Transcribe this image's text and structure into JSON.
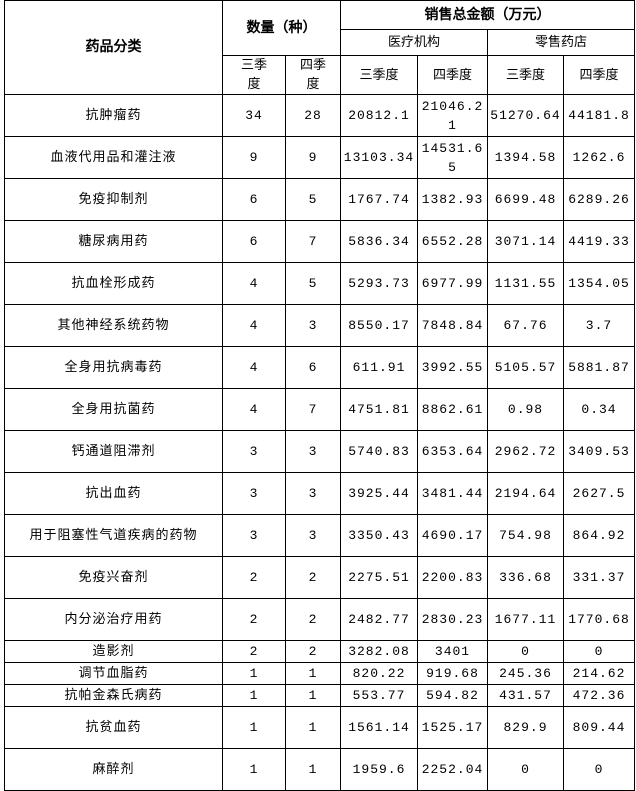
{
  "header": {
    "category": "药品分类",
    "count": "数量（种）",
    "sales_total": "销售总金额（万元）",
    "medical": "医疗机构",
    "retail": "零售药店",
    "q3": "三季度",
    "q4": "四季度"
  },
  "rows": [
    {
      "name": "抗肿瘤药",
      "n3": "34",
      "n4": "28",
      "m3": "20812.1",
      "m4": "21046.21",
      "r3": "51270.64",
      "r4": "44181.8",
      "tall": true
    },
    {
      "name": "血液代用品和灌注液",
      "n3": "9",
      "n4": "9",
      "m3": "13103.34",
      "m4": "14531.65",
      "r3": "1394.58",
      "r4": "1262.6",
      "tall": true
    },
    {
      "name": "免疫抑制剂",
      "n3": "6",
      "n4": "5",
      "m3": "1767.74",
      "m4": "1382.93",
      "r3": "6699.48",
      "r4": "6289.26",
      "tall": true
    },
    {
      "name": "糖尿病用药",
      "n3": "6",
      "n4": "7",
      "m3": "5836.34",
      "m4": "6552.28",
      "r3": "3071.14",
      "r4": "4419.33",
      "tall": true
    },
    {
      "name": "抗血栓形成药",
      "n3": "4",
      "n4": "5",
      "m3": "5293.73",
      "m4": "6977.99",
      "r3": "1131.55",
      "r4": "1354.05",
      "tall": true
    },
    {
      "name": "其他神经系统药物",
      "n3": "4",
      "n4": "3",
      "m3": "8550.17",
      "m4": "7848.84",
      "r3": "67.76",
      "r4": "3.7",
      "tall": true
    },
    {
      "name": "全身用抗病毒药",
      "n3": "4",
      "n4": "6",
      "m3": "611.91",
      "m4": "3992.55",
      "r3": "5105.57",
      "r4": "5881.87",
      "tall": true
    },
    {
      "name": "全身用抗菌药",
      "n3": "4",
      "n4": "7",
      "m3": "4751.81",
      "m4": "8862.61",
      "r3": "0.98",
      "r4": "0.34",
      "tall": true
    },
    {
      "name": "钙通道阻滞剂",
      "n3": "3",
      "n4": "3",
      "m3": "5740.83",
      "m4": "6353.64",
      "r3": "2962.72",
      "r4": "3409.53",
      "tall": true
    },
    {
      "name": "抗出血药",
      "n3": "3",
      "n4": "3",
      "m3": "3925.44",
      "m4": "3481.44",
      "r3": "2194.64",
      "r4": "2627.5",
      "tall": true
    },
    {
      "name": "用于阻塞性气道疾病的药物",
      "n3": "3",
      "n4": "3",
      "m3": "3350.43",
      "m4": "4690.17",
      "r3": "754.98",
      "r4": "864.92",
      "tall": true
    },
    {
      "name": "免疫兴奋剂",
      "n3": "2",
      "n4": "2",
      "m3": "2275.51",
      "m4": "2200.83",
      "r3": "336.68",
      "r4": "331.37",
      "tall": true
    },
    {
      "name": "内分泌治疗用药",
      "n3": "2",
      "n4": "2",
      "m3": "2482.77",
      "m4": "2830.23",
      "r3": "1677.11",
      "r4": "1770.68",
      "tall": true
    },
    {
      "name": "造影剂",
      "n3": "2",
      "n4": "2",
      "m3": "3282.08",
      "m4": "3401",
      "r3": "0",
      "r4": "0",
      "tall": false
    },
    {
      "name": "调节血脂药",
      "n3": "1",
      "n4": "1",
      "m3": "820.22",
      "m4": "919.68",
      "r3": "245.36",
      "r4": "214.62",
      "tall": false
    },
    {
      "name": "抗帕金森氏病药",
      "n3": "1",
      "n4": "1",
      "m3": "553.77",
      "m4": "594.82",
      "r3": "431.57",
      "r4": "472.36",
      "tall": false
    },
    {
      "name": "抗贫血药",
      "n3": "1",
      "n4": "1",
      "m3": "1561.14",
      "m4": "1525.17",
      "r3": "829.9",
      "r4": "809.44",
      "tall": true
    },
    {
      "name": "麻醉剂",
      "n3": "1",
      "n4": "1",
      "m3": "1959.6",
      "m4": "2252.04",
      "r3": "0",
      "r4": "0",
      "tall": true
    }
  ]
}
